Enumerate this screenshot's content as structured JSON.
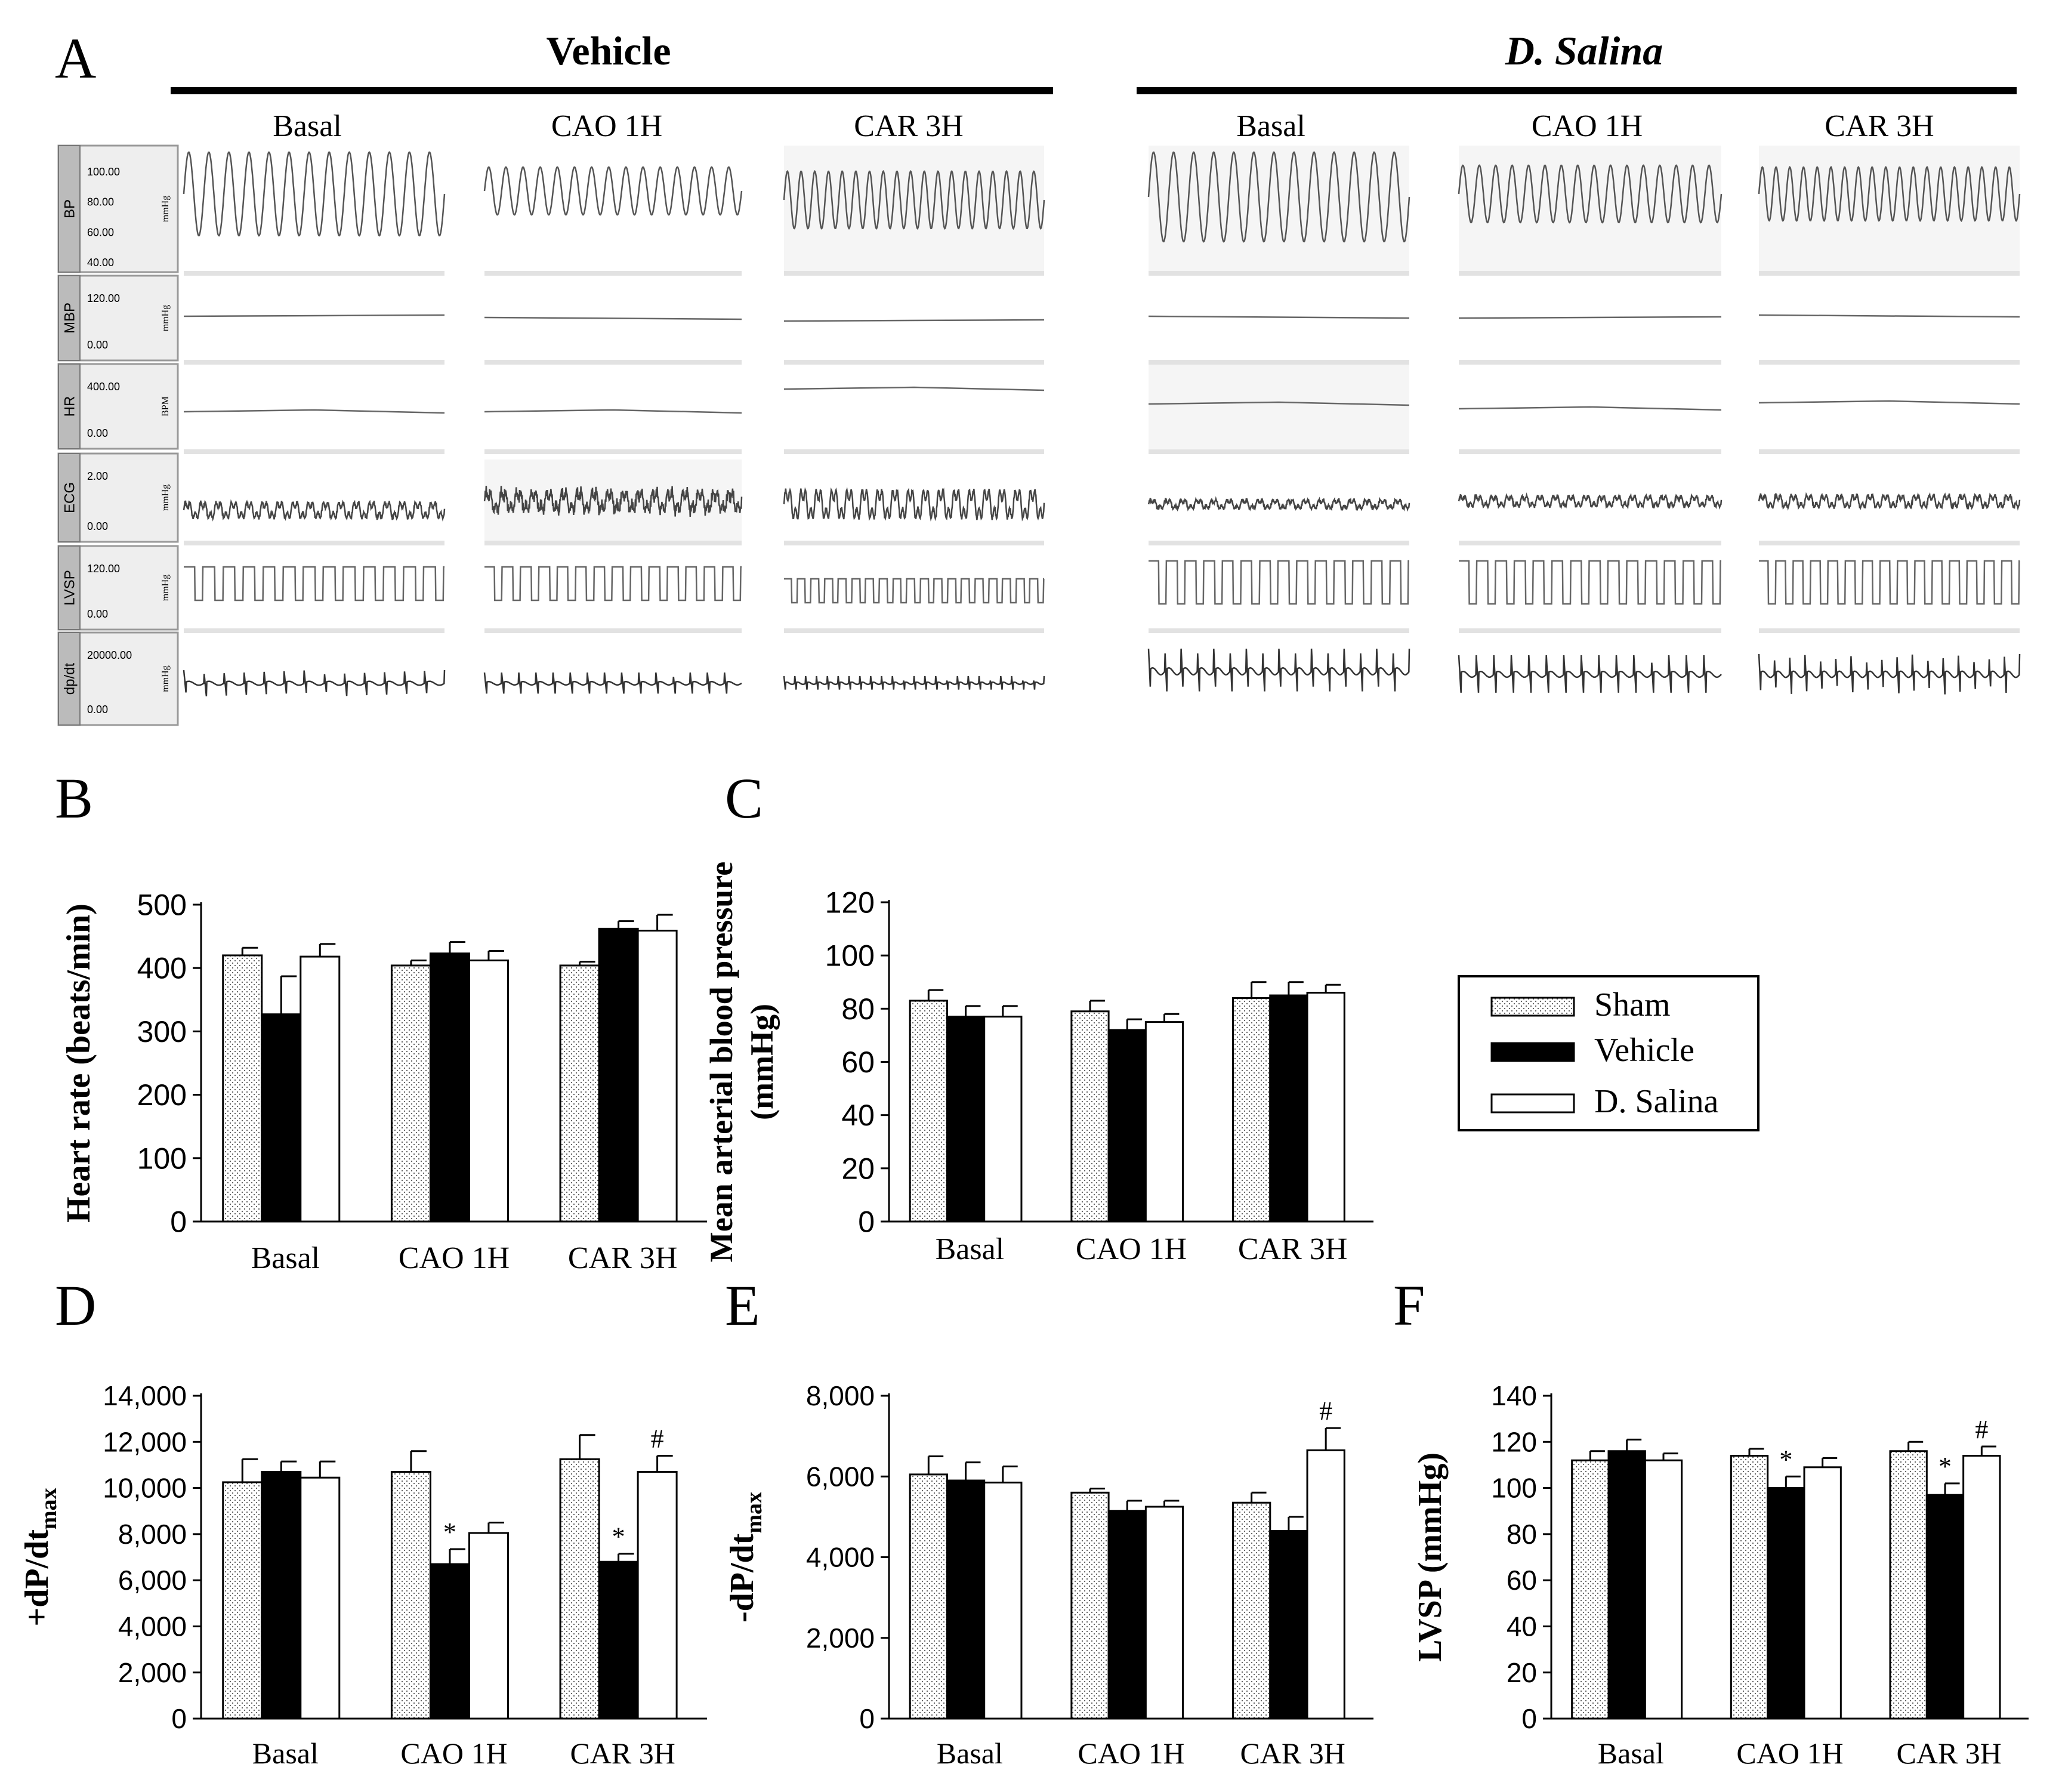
{
  "panel_a": {
    "label": "A",
    "vehicle_title": "Vehicle",
    "salina_title": "D. Salina",
    "conditions": [
      "Basal",
      "CAO 1H",
      "CAR 3H"
    ],
    "rows": [
      {
        "name": "BP",
        "scale_values": [
          "100.00",
          "80.00",
          "60.00",
          "40.00"
        ],
        "unit": "mmHg"
      },
      {
        "name": "MBP",
        "scale_values": [
          "120.00",
          "0.00"
        ],
        "unit": "mmHg"
      },
      {
        "name": "HR",
        "scale_values": [
          "400.00",
          "0.00"
        ],
        "unit": "BPM"
      },
      {
        "name": "ECG",
        "scale_values": [
          "2.00",
          "0.00"
        ],
        "unit": "mmHg"
      },
      {
        "name": "LVSP",
        "scale_values": [
          "120.00",
          "0.00"
        ],
        "unit": "mmHg"
      },
      {
        "name": "dp/dt",
        "scale_values": [
          "20000.00",
          "0.00"
        ],
        "unit": "mmHg"
      }
    ]
  },
  "legend": {
    "colors": {
      "Sham": "#f2f2f2",
      "Vehicle": "#000000",
      "D. Salina": "#ffffff"
    }
  },
  "chart_data": [
    {
      "panel": "B",
      "type": "bar",
      "categories": [
        "Basal",
        "CAO 1H",
        "CAR 3H"
      ],
      "ylabel": "Heart rate (beats/min)",
      "ylim": [
        0,
        500
      ],
      "yticks": [
        "0",
        "100",
        "200",
        "300",
        "400",
        "500"
      ],
      "series": [
        {
          "name": "Sham",
          "values": [
            420,
            404,
            404
          ],
          "errors": [
            12,
            8,
            6
          ]
        },
        {
          "name": "Vehicle",
          "values": [
            327,
            423,
            462
          ],
          "errors": [
            60,
            18,
            12
          ]
        },
        {
          "name": "D. Salina",
          "values": [
            418,
            412,
            459
          ],
          "errors": [
            20,
            15,
            25
          ]
        }
      ],
      "annotations": [
        "",
        "",
        "",
        "",
        "",
        "",
        "",
        "",
        ""
      ]
    },
    {
      "panel": "C",
      "type": "bar",
      "categories": [
        "Basal",
        "CAO 1H",
        "CAR 3H"
      ],
      "ylabel": "Mean arterial blood pressure (mmHg)",
      "ylim": [
        0,
        120
      ],
      "yticks": [
        "0",
        "20",
        "40",
        "60",
        "80",
        "100",
        "120"
      ],
      "series": [
        {
          "name": "Sham",
          "values": [
            83,
            79,
            84
          ],
          "errors": [
            4,
            4,
            6
          ]
        },
        {
          "name": "Vehicle",
          "values": [
            77,
            72,
            85
          ],
          "errors": [
            4,
            4,
            5
          ]
        },
        {
          "name": "D. Salina",
          "values": [
            77,
            75,
            86
          ],
          "errors": [
            4,
            3,
            3
          ]
        }
      ],
      "annotations": [
        "",
        "",
        "",
        "",
        "",
        "",
        "",
        "",
        ""
      ]
    },
    {
      "panel": "D",
      "type": "bar",
      "categories": [
        "Basal",
        "CAO 1H",
        "CAR 3H"
      ],
      "ylabel": "+dP/dt",
      "ylabel_sub": "max",
      "ylim": [
        0,
        14000
      ],
      "yticks": [
        "0",
        "2,000",
        "4,000",
        "6,000",
        "8,000",
        "10,000",
        "12,000",
        "14,000"
      ],
      "series": [
        {
          "name": "Sham",
          "values": [
            10250,
            10700,
            11250
          ],
          "errors": [
            1000,
            900,
            1050
          ]
        },
        {
          "name": "Vehicle",
          "values": [
            10700,
            6700,
            6800
          ],
          "errors": [
            450,
            650,
            350
          ]
        },
        {
          "name": "D. Salina",
          "values": [
            10450,
            8050,
            10700
          ],
          "errors": [
            700,
            450,
            700
          ]
        }
      ],
      "annotations": [
        "",
        "",
        "",
        "",
        "*",
        "",
        "",
        "*",
        "#"
      ]
    },
    {
      "panel": "E",
      "type": "bar",
      "categories": [
        "Basal",
        "CAO 1H",
        "CAR 3H"
      ],
      "ylabel": "-dP/dt",
      "ylabel_sub": "max",
      "ylim": [
        0,
        8000
      ],
      "yticks": [
        "0",
        "2,000",
        "4,000",
        "6,000",
        "8,000"
      ],
      "series": [
        {
          "name": "Sham",
          "values": [
            6050,
            5600,
            5350
          ],
          "errors": [
            450,
            100,
            250
          ]
        },
        {
          "name": "Vehicle",
          "values": [
            5900,
            5150,
            4650
          ],
          "errors": [
            450,
            250,
            350
          ]
        },
        {
          "name": "D. Salina",
          "values": [
            5850,
            5250,
            6650
          ],
          "errors": [
            400,
            150,
            550
          ]
        }
      ],
      "annotations": [
        "",
        "",
        "",
        "",
        "",
        "",
        "",
        "",
        "#"
      ]
    },
    {
      "panel": "F",
      "type": "bar",
      "categories": [
        "Basal",
        "CAO 1H",
        "CAR 3H"
      ],
      "ylabel": "LVSP (mmHg)",
      "ylim": [
        0,
        140
      ],
      "yticks": [
        "0",
        "20",
        "40",
        "60",
        "80",
        "100",
        "120",
        "140"
      ],
      "series": [
        {
          "name": "Sham",
          "values": [
            112,
            114,
            116
          ],
          "errors": [
            4,
            3,
            4
          ]
        },
        {
          "name": "Vehicle",
          "values": [
            116,
            100,
            97
          ],
          "errors": [
            5,
            5,
            5
          ]
        },
        {
          "name": "D. Salina",
          "values": [
            112,
            109,
            114
          ],
          "errors": [
            3,
            4,
            4
          ]
        }
      ],
      "annotations": [
        "",
        "",
        "",
        "",
        "*",
        "",
        "",
        "*",
        "#"
      ]
    }
  ]
}
